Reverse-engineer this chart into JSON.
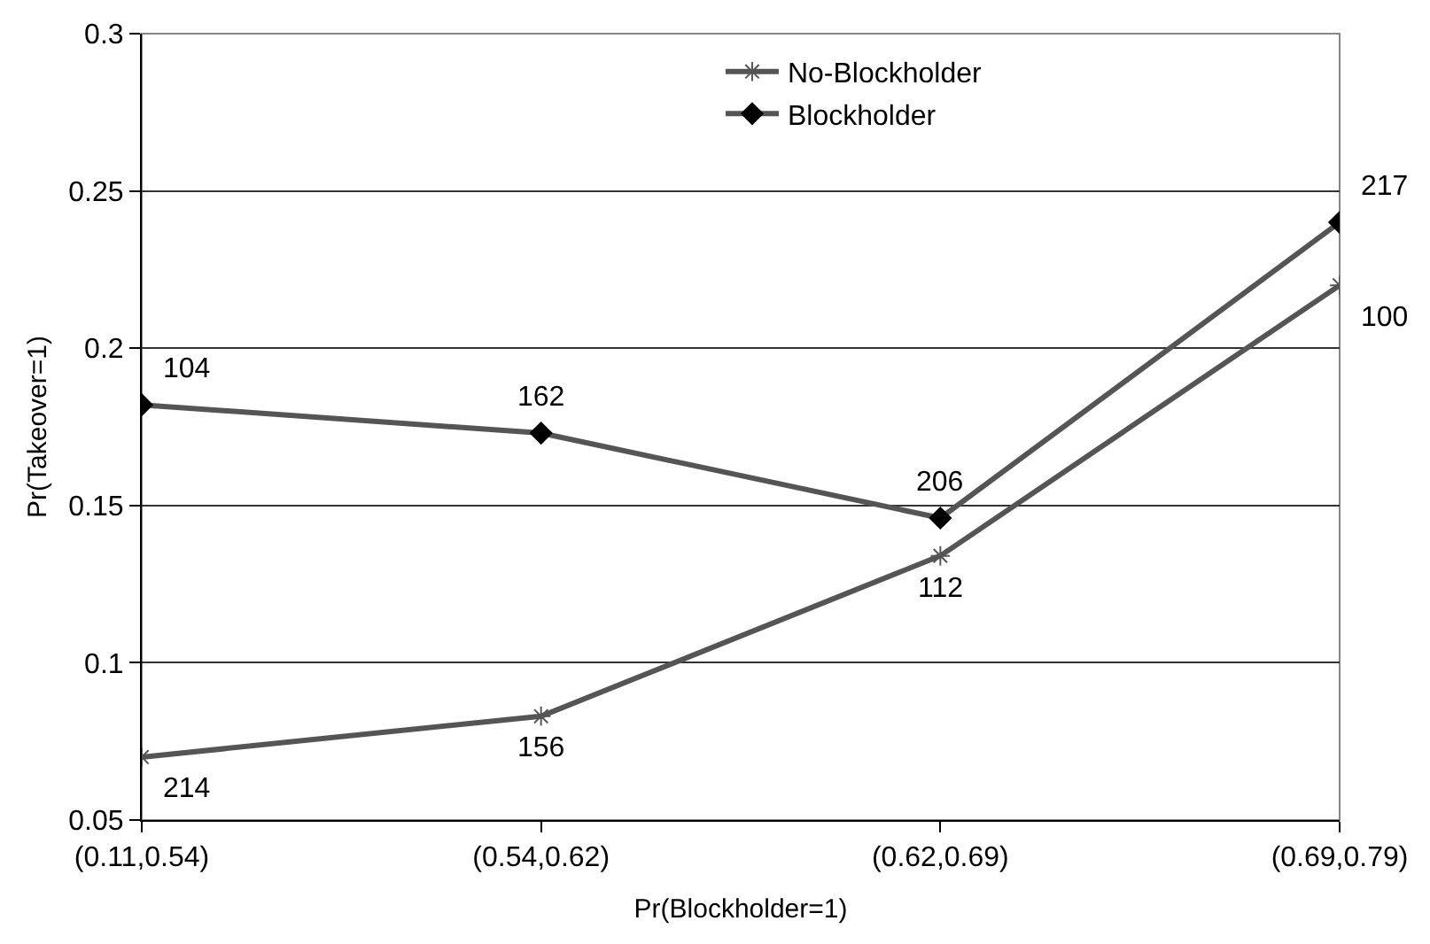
{
  "chart_data": {
    "type": "line",
    "xlabel": "Pr(Blockholder=1)",
    "ylabel": "Pr(Takeover=1)",
    "categories": [
      "(0.11,0.54)",
      "(0.54,0.62)",
      "(0.62,0.69)",
      "(0.69,0.79)"
    ],
    "series": [
      {
        "name": "No-Blockholder",
        "color": "#555555",
        "marker": "cross",
        "values": [
          0.07,
          0.083,
          0.134,
          0.22
        ]
      },
      {
        "name": "Blockholder",
        "color": "#555555",
        "marker": "diamond",
        "values": [
          0.182,
          0.173,
          0.146,
          0.24
        ]
      }
    ],
    "annotations": [
      {
        "text": "214",
        "x": "(0.11,0.54)",
        "y": 0.07
      },
      {
        "text": "156",
        "x": "(0.54,0.62)",
        "y": 0.083
      },
      {
        "text": "112",
        "x": "(0.62,0.69)",
        "y": 0.134
      },
      {
        "text": "100",
        "x": "(0.69,0.79)",
        "y": 0.22
      },
      {
        "text": "104",
        "x": "(0.11,0.54)",
        "y": 0.182
      },
      {
        "text": "162",
        "x": "(0.54,0.62)",
        "y": 0.173
      },
      {
        "text": "206",
        "x": "(0.62,0.69)",
        "y": 0.146
      },
      {
        "text": "217",
        "x": "(0.69,0.79)",
        "y": 0.24
      }
    ],
    "ylim": [
      0.05,
      0.3
    ],
    "yticks": [
      0.05,
      0.1,
      0.15,
      0.2,
      0.25,
      0.3
    ],
    "grid": "y",
    "legend": "top right",
    "line_style": "solid"
  }
}
